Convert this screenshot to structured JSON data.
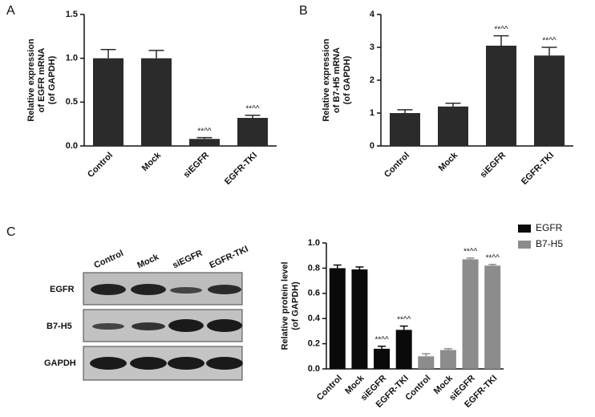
{
  "panel_labels": [
    "A",
    "B",
    "C"
  ],
  "blot": {
    "lanes": [
      "Control",
      "Mock",
      "siEGFR",
      "EGFR-TKI"
    ],
    "rows": [
      "EGFR",
      "B7-H5",
      "GAPDH"
    ]
  },
  "chart_data": [
    {
      "type": "bar",
      "categories": [
        "Control",
        "Mock",
        "siEGFR",
        "EGFR-TKI"
      ],
      "series": [
        {
          "color": "#2b2b2b",
          "values": [
            1.0,
            1.0,
            0.08,
            0.32
          ],
          "errors": [
            0.1,
            0.09,
            0.015,
            0.03
          ],
          "annotations": [
            null,
            null,
            "**^^",
            "**^^"
          ]
        }
      ],
      "y_label": [
        "Relative expression",
        "of EGFR mRNA",
        "(of GAPDH)"
      ],
      "ylim": [
        0,
        1.5
      ],
      "yticks": [
        {
          "value": 0,
          "label": "0.0"
        },
        {
          "value": 0.5,
          "label": "0.5"
        },
        {
          "value": 1,
          "label": "1.0"
        },
        {
          "value": 1.5,
          "label": "1.5"
        }
      ]
    },
    {
      "type": "bar",
      "categories": [
        "Control",
        "Mock",
        "siEGFR",
        "EGFR-TKI"
      ],
      "series": [
        {
          "color": "#2b2b2b",
          "values": [
            1.0,
            1.2,
            3.05,
            2.75
          ],
          "errors": [
            0.1,
            0.1,
            0.3,
            0.25
          ],
          "annotations": [
            null,
            null,
            "**^^",
            "**^^"
          ]
        }
      ],
      "y_label": [
        "Relative expression",
        "of B7-H5 mRNA",
        "(of GAPDH)"
      ],
      "ylim": [
        0,
        4
      ],
      "yticks": [
        0,
        1,
        2,
        3,
        4
      ]
    },
    {
      "type": "bar",
      "categories": [
        "Control",
        "Mock",
        "siEGFR",
        "EGFR-TKI",
        "Control",
        "Mock",
        "siEGFR",
        "EGFR-TKI"
      ],
      "series": [
        {
          "name": "EGFR",
          "color": "#0a0a0a",
          "values": [
            0.8,
            0.79,
            0.16,
            0.31,
            null,
            null,
            null,
            null
          ],
          "errors": [
            0.025,
            0.02,
            0.02,
            0.03,
            null,
            null,
            null,
            null
          ],
          "annotations": [
            null,
            null,
            "**^^",
            "**^^",
            null,
            null,
            null,
            null
          ]
        },
        {
          "name": "B7-H5",
          "color": "#8c8c8c",
          "values": [
            null,
            null,
            null,
            null,
            0.1,
            0.15,
            0.87,
            0.82
          ],
          "errors": [
            null,
            null,
            null,
            null,
            0.02,
            0.01,
            0.01,
            0.01
          ],
          "annotations": [
            null,
            null,
            null,
            null,
            null,
            null,
            "**^^",
            "**^^"
          ]
        }
      ],
      "y_label": [
        "Relative protein level",
        "(of  GAPDH)"
      ],
      "ylim": [
        0,
        1
      ],
      "yticks": [
        {
          "value": 0,
          "label": "0.0"
        },
        {
          "value": 0.2,
          "label": "0.2"
        },
        {
          "value": 0.4,
          "label": "0.4"
        },
        {
          "value": 0.6,
          "label": "0.6"
        },
        {
          "value": 0.8,
          "label": "0.8"
        },
        {
          "value": 1,
          "label": "1.0"
        }
      ],
      "legend": "right"
    }
  ]
}
